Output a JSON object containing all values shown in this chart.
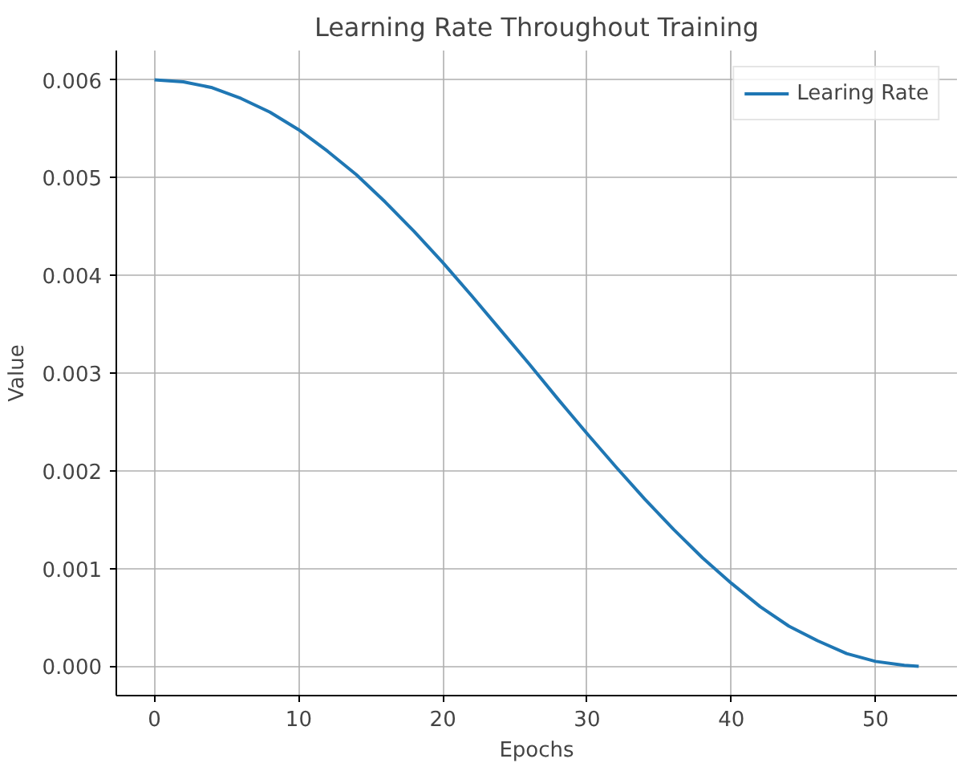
{
  "chart_data": {
    "type": "line",
    "title": "Learning Rate Throughout Training",
    "xlabel": "Epochs",
    "ylabel": "Value",
    "x": [
      0,
      2,
      4,
      6,
      8,
      10,
      12,
      14,
      16,
      18,
      20,
      22,
      24,
      26,
      28,
      30,
      32,
      34,
      36,
      38,
      40,
      42,
      44,
      46,
      48,
      50,
      52,
      53
    ],
    "series": [
      {
        "name": "Learing Rate",
        "color": "#1f77b4",
        "values": [
          0.006,
          0.00598,
          0.00592,
          0.00581,
          0.00567,
          0.00549,
          0.00527,
          0.00503,
          0.00475,
          0.00445,
          0.00413,
          0.00379,
          0.00344,
          0.00309,
          0.00273,
          0.00238,
          0.00204,
          0.00171,
          0.0014,
          0.00111,
          0.00085,
          0.00061,
          0.00041,
          0.00026,
          0.00013,
          5e-05,
          1e-05,
          0.0
        ]
      }
    ],
    "xlim": [
      -2.65,
      55.65
    ],
    "xticks": [
      0,
      10,
      20,
      30,
      40,
      50
    ],
    "ylim": [
      -0.0003,
      0.0063
    ],
    "yticks": [
      {
        "value": 0,
        "label": "0.000"
      },
      {
        "value": 0.001,
        "label": "0.001"
      },
      {
        "value": 0.002,
        "label": "0.002"
      },
      {
        "value": 0.003,
        "label": "0.003"
      },
      {
        "value": 0.004,
        "label": "0.004"
      },
      {
        "value": 0.005,
        "label": "0.005"
      },
      {
        "value": 0.006,
        "label": "0.006"
      }
    ],
    "grid": true,
    "legend": "top right",
    "line_style": "solid",
    "marker": "none"
  }
}
